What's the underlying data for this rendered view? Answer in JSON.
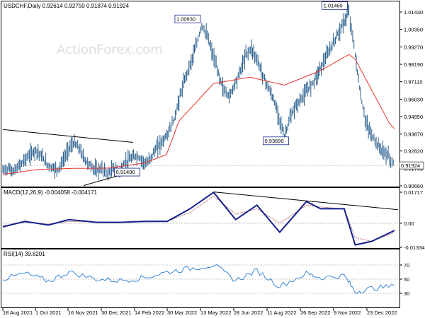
{
  "watermark": "ActionForex.com",
  "colors": {
    "price": "#2a5f8e",
    "ma": "#e8352a",
    "macd": "#14208c",
    "signal": "#b05a5a",
    "rsi": "#3a86d4",
    "trendline": "#000000",
    "box_border": "#14208c",
    "current_box": "#404040",
    "dash": "#888888"
  },
  "chart_data": [
    {
      "type": "ohlc",
      "title": "USDCHF,Daily  0.92614  0.92750  0.91874  0.91924",
      "y_ticks": [
        "1.01430",
        "1.00350",
        "0.99270",
        "0.98190",
        "0.97110",
        "0.96030",
        "0.94950",
        "0.93870",
        "0.92820",
        "0.91740",
        "0.90660"
      ],
      "current_price": "0.91924",
      "annotations": [
        {
          "text": "1.00630",
          "value": 1.0063,
          "date": "2022-04-28"
        },
        {
          "text": "1.01460",
          "value": 1.0146,
          "date": "2022-11-01"
        },
        {
          "text": "0.93690",
          "value": 0.9369,
          "date": "2022-08-11"
        },
        {
          "text": "0.91490",
          "value": 0.9149,
          "date": "2022-01-14"
        }
      ],
      "series": [
        {
          "name": "price",
          "x": [
            "2021-08-18",
            "2021-08-25",
            "2021-09-01",
            "2021-09-08",
            "2021-09-15",
            "2021-09-22",
            "2021-09-29",
            "2021-10-06",
            "2021-10-13",
            "2021-10-20",
            "2021-10-27",
            "2021-11-03",
            "2021-11-10",
            "2021-11-17",
            "2021-11-24",
            "2021-12-01",
            "2021-12-08",
            "2021-12-15",
            "2021-12-22",
            "2021-12-30",
            "2022-01-06",
            "2022-01-13",
            "2022-01-20",
            "2022-01-27",
            "2022-02-03",
            "2022-02-10",
            "2022-02-17",
            "2022-02-24",
            "2022-03-03",
            "2022-03-10",
            "2022-03-17",
            "2022-03-24",
            "2022-03-30",
            "2022-04-06",
            "2022-04-13",
            "2022-04-20",
            "2022-04-28",
            "2022-05-05",
            "2022-05-12",
            "2022-05-19",
            "2022-05-26",
            "2022-06-02",
            "2022-06-09",
            "2022-06-16",
            "2022-06-23",
            "2022-06-30",
            "2022-07-07",
            "2022-07-14",
            "2022-07-21",
            "2022-07-28",
            "2022-08-04",
            "2022-08-11",
            "2022-08-18",
            "2022-08-25",
            "2022-09-01",
            "2022-09-08",
            "2022-09-15",
            "2022-09-22",
            "2022-09-28",
            "2022-10-05",
            "2022-10-12",
            "2022-10-19",
            "2022-10-26",
            "2022-11-01",
            "2022-11-09",
            "2022-11-16",
            "2022-11-23",
            "2022-11-30",
            "2022-12-07",
            "2022-12-14",
            "2022-12-21",
            "2022-12-29"
          ],
          "y": [
            0.916,
            0.9175,
            0.9155,
            0.919,
            0.923,
            0.926,
            0.929,
            0.925,
            0.92,
            0.918,
            0.9165,
            0.9225,
            0.93,
            0.933,
            0.929,
            0.922,
            0.919,
            0.916,
            0.917,
            0.914,
            0.9175,
            0.9149,
            0.921,
            0.923,
            0.925,
            0.923,
            0.92,
            0.926,
            0.931,
            0.935,
            0.94,
            0.948,
            0.96,
            0.972,
            0.982,
            0.992,
            1.0063,
            0.999,
            0.988,
            0.976,
            0.966,
            0.962,
            0.97,
            0.978,
            0.988,
            0.992,
            0.985,
            0.976,
            0.968,
            0.96,
            0.95,
            0.9369,
            0.948,
            0.956,
            0.96,
            0.965,
            0.97,
            0.976,
            0.982,
            0.988,
            0.995,
            1.002,
            1.008,
            1.0146,
            0.988,
            0.962,
            0.945,
            0.938,
            0.932,
            0.928,
            0.925,
            0.9192
          ]
        },
        {
          "name": "moving average",
          "x": [
            "2021-08-18",
            "2021-10-01",
            "2021-11-16",
            "2021-12-30",
            "2022-02-14",
            "2022-03-14",
            "2022-03-30",
            "2022-05-13",
            "2022-06-28",
            "2022-08-11",
            "2022-09-26",
            "2022-11-01",
            "2022-11-09",
            "2022-12-23",
            "2022-12-29"
          ],
          "y": [
            0.9137,
            0.9167,
            0.9174,
            0.9176,
            0.9208,
            0.926,
            0.9468,
            0.97,
            0.974,
            0.969,
            0.978,
            0.988,
            0.985,
            0.945,
            0.942
          ]
        }
      ]
    },
    {
      "type": "line",
      "title": "MACD(12,26,9) -0.004058 -0.004171",
      "y_ticks": [
        "0.01717",
        "0.00",
        "-0.01334"
      ],
      "series": [
        {
          "name": "macd",
          "x": [
            "2021-08-18",
            "2021-09-15",
            "2021-10-15",
            "2021-11-10",
            "2021-12-15",
            "2022-01-14",
            "2022-02-14",
            "2022-03-15",
            "2022-04-13",
            "2022-05-13",
            "2022-06-10",
            "2022-07-07",
            "2022-08-05",
            "2022-09-08",
            "2022-09-26",
            "2022-10-26",
            "2022-11-09",
            "2022-11-30",
            "2022-12-29"
          ],
          "y": [
            -0.002,
            0.001,
            -0.001,
            0.002,
            0.0005,
            0.0005,
            0.001,
            0.001,
            0.008,
            0.0171,
            0.002,
            0.01,
            -0.005,
            0.012,
            0.008,
            0.008,
            -0.012,
            -0.01,
            -0.004
          ]
        },
        {
          "name": "signal",
          "x": [
            "2021-08-18",
            "2021-09-15",
            "2021-10-15",
            "2021-11-10",
            "2021-12-15",
            "2022-01-14",
            "2022-02-14",
            "2022-03-15",
            "2022-04-13",
            "2022-05-13",
            "2022-06-10",
            "2022-07-07",
            "2022-08-05",
            "2022-09-08",
            "2022-09-26",
            "2022-10-26",
            "2022-11-09",
            "2022-11-30",
            "2022-12-29"
          ],
          "y": [
            -0.0015,
            0.0005,
            -0.0005,
            0.001,
            0.0008,
            0.0005,
            0.0008,
            0.001,
            0.006,
            0.015,
            0.005,
            0.008,
            0.0,
            0.01,
            0.009,
            0.008,
            -0.008,
            -0.01,
            -0.005
          ]
        }
      ]
    },
    {
      "type": "line",
      "title": "RSI(14) 39.8201",
      "y_ticks": [
        "70",
        "50",
        "30"
      ],
      "series": [
        {
          "name": "rsi",
          "x": [
            "2021-08-18",
            "2021-09-15",
            "2021-10-15",
            "2021-11-10",
            "2021-12-15",
            "2022-01-14",
            "2022-02-14",
            "2022-03-15",
            "2022-04-13",
            "2022-05-13",
            "2022-06-10",
            "2022-07-07",
            "2022-08-05",
            "2022-09-08",
            "2022-09-26",
            "2022-10-26",
            "2022-11-09",
            "2022-11-30",
            "2022-12-29"
          ],
          "y": [
            50,
            58,
            47,
            60,
            50,
            48,
            52,
            60,
            65,
            70,
            48,
            62,
            40,
            58,
            52,
            55,
            32,
            37,
            40
          ]
        }
      ]
    }
  ],
  "x_ticks": [
    "18 Aug 2021",
    "1 Oct 2021",
    "16 Nov 2021",
    "30 Dec 2021",
    "14 Feb 2022",
    "30 Mar 2022",
    "13 May 2022",
    "28 Jun 2022",
    "11 Aug 2022",
    "26 Sep 2022",
    "9 Nov 2022",
    "23 Dec 2022"
  ]
}
